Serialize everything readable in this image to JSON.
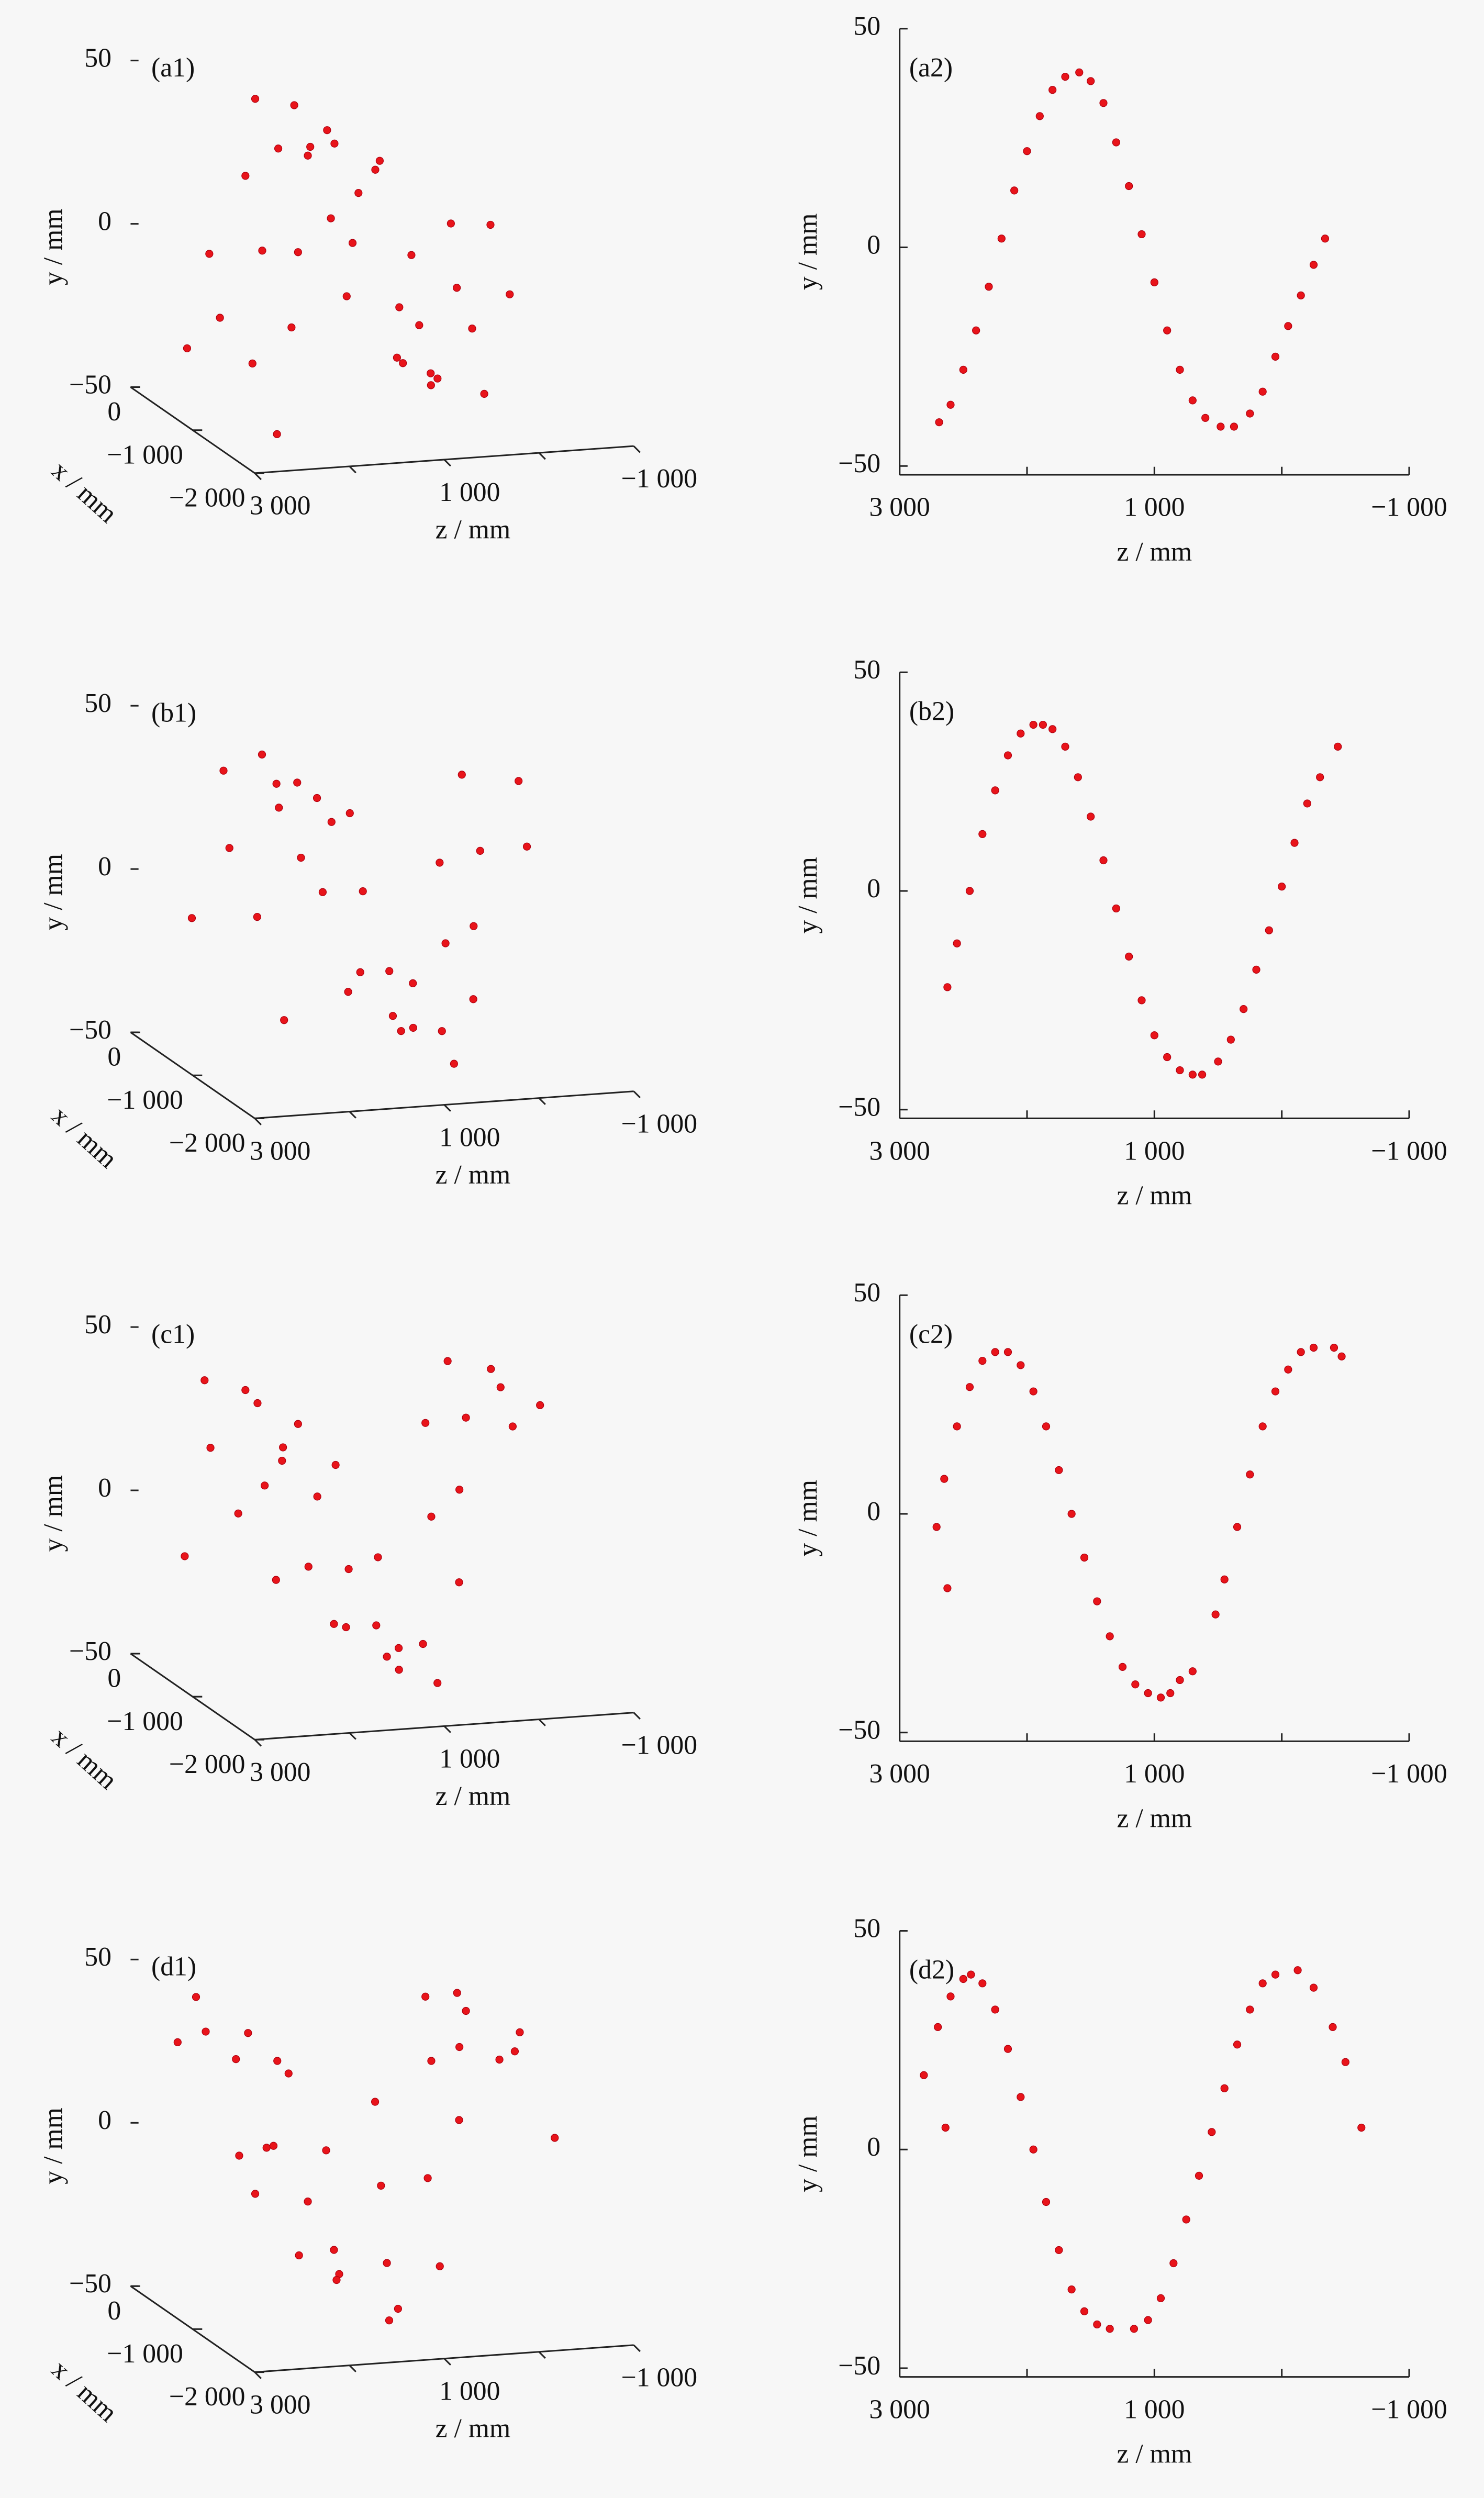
{
  "chart_data": [
    {
      "type": "scatter3d",
      "label": "(a1)",
      "zlabel": "z / mm",
      "xlabel": "x / mm",
      "ylabel": "y / mm",
      "color": "#e8141a",
      "zlim": [
        3000,
        -1000
      ],
      "xlim": [
        -2000,
        0
      ],
      "ylim": [
        -50,
        50
      ],
      "zticks": [
        {
          "value": 3000,
          "label": "3 000"
        },
        {
          "value": 1000,
          "label": "1 000"
        },
        {
          "value": -1000,
          "label": "−1 000"
        }
      ],
      "zminor": [
        2000,
        0
      ],
      "xticks": [
        0,
        {
          "value": -1000,
          "label": "−1 000"
        },
        {
          "value": -2000,
          "label": "−2 000"
        }
      ],
      "yticks": [
        50,
        0,
        {
          "value": -50,
          "label": "−50"
        }
      ],
      "z": [
        2700,
        2600,
        2500,
        2450,
        2350,
        2300,
        2200,
        2150,
        2050,
        2000,
        1900,
        1850,
        1750,
        1700,
        1600,
        1550,
        1450,
        1400,
        1300,
        1250,
        1150,
        1050,
        950,
        850,
        750,
        650,
        550,
        450,
        350,
        250,
        150,
        50,
        -50,
        -150,
        -250,
        -340
      ],
      "y": [
        -40,
        -35,
        -28,
        -22,
        -12,
        -8,
        2,
        8,
        18,
        22,
        30,
        33,
        37,
        39,
        40,
        40,
        36,
        33,
        24,
        19,
        9,
        -2,
        -14,
        -24,
        -32,
        -37,
        -40,
        -41,
        -41,
        -38,
        -33,
        -25,
        -18,
        -11,
        -4,
        2
      ],
      "x": [
        -1900,
        -300,
        -1200,
        -600,
        -1600,
        -200,
        -900,
        -1400,
        -400,
        -1700,
        -700,
        -1100,
        -100,
        -1300,
        -500,
        -1800,
        -800,
        -1500,
        -300,
        -1000,
        -1700,
        -600,
        -1200,
        -200,
        -1400,
        -800,
        -1100,
        -400,
        -900,
        -1500,
        -300,
        -1000,
        -600,
        -1300,
        -200,
        -700
      ]
    },
    {
      "type": "scatter",
      "label": "(a2)",
      "xlabel": "z / mm",
      "ylabel": "y / mm",
      "color": "#e8141a",
      "xlim": [
        3000,
        -1000
      ],
      "ylim": [
        -52,
        50
      ],
      "xticks": [
        {
          "value": 3000,
          "label": "3 000"
        },
        {
          "value": 1000,
          "label": "1 000"
        },
        {
          "value": -1000,
          "label": "−1 000"
        }
      ],
      "xminor": [
        2000,
        0
      ],
      "yticks": [
        50,
        0,
        {
          "value": -50,
          "label": "−50"
        }
      ],
      "x": [
        2690,
        2600,
        2500,
        2400,
        2300,
        2200,
        2100,
        2000,
        1900,
        1800,
        1700,
        1590,
        1500,
        1400,
        1300,
        1200,
        1100,
        1000,
        900,
        800,
        700,
        600,
        480,
        375,
        250,
        150,
        50,
        -50,
        -150,
        -250,
        -340
      ],
      "y": [
        -40,
        -36,
        -28,
        -19,
        -9,
        2,
        13,
        22,
        30,
        36,
        39,
        40,
        38,
        33,
        24,
        14,
        3,
        -8,
        -19,
        -28,
        -35,
        -39,
        -41,
        -41,
        -38,
        -33,
        -25,
        -18,
        -11,
        -4,
        2
      ]
    },
    {
      "type": "scatter3d",
      "label": "(b1)",
      "zlabel": "z / mm",
      "xlabel": "x / mm",
      "ylabel": "y / mm",
      "color": "#e8141a",
      "zlim": [
        3000,
        -1000
      ],
      "xlim": [
        -2000,
        0
      ],
      "ylim": [
        -50,
        50
      ],
      "zticks": [
        {
          "value": 3000,
          "label": "3 000"
        },
        {
          "value": 1000,
          "label": "1 000"
        },
        {
          "value": -1000,
          "label": "−1 000"
        }
      ],
      "zminor": [
        2000,
        0
      ],
      "xticks": [
        0,
        {
          "value": -1000,
          "label": "−1 000"
        },
        {
          "value": -2000,
          "label": "−2 000"
        }
      ],
      "yticks": [
        50,
        0,
        {
          "value": -50,
          "label": "−50"
        }
      ],
      "z": [
        2625,
        2550,
        2450,
        2350,
        2250,
        2150,
        2050,
        1950,
        1875,
        1800,
        1700,
        1600,
        1500,
        1400,
        1300,
        1200,
        1100,
        1000,
        900,
        800,
        700,
        625,
        500,
        400,
        300,
        200,
        100,
        0,
        -100,
        -200,
        -300,
        -440
      ],
      "y": [
        -22,
        -12,
        0,
        13,
        23,
        31,
        36,
        38,
        38,
        37,
        33,
        26,
        17,
        7,
        -4,
        -15,
        -25,
        -33,
        -38,
        -41,
        -42,
        -42,
        -39,
        -34,
        -27,
        -18,
        -9,
        1,
        11,
        20,
        26,
        33
      ],
      "x": [
        -1900,
        -300,
        -1200,
        -600,
        -1600,
        -200,
        -900,
        -1400,
        -400,
        -1700,
        -700,
        -1100,
        -100,
        -1300,
        -500,
        -1800,
        -800,
        -1500,
        -300,
        -1000,
        -1700,
        -600,
        -1200,
        -200,
        -1400,
        -800,
        -1100,
        -400,
        -900,
        -1500,
        -300,
        -1000
      ]
    },
    {
      "type": "scatter",
      "label": "(b2)",
      "xlabel": "z / mm",
      "ylabel": "y / mm",
      "color": "#e8141a",
      "xlim": [
        3000,
        -1000
      ],
      "ylim": [
        -52,
        50
      ],
      "xticks": [
        {
          "value": 3000,
          "label": "3 000"
        },
        {
          "value": 1000,
          "label": "1 000"
        },
        {
          "value": -1000,
          "label": "−1 000"
        }
      ],
      "xminor": [
        2000,
        0
      ],
      "yticks": [
        50,
        0,
        {
          "value": -50,
          "label": "−50"
        }
      ],
      "x": [
        2625,
        2550,
        2450,
        2350,
        2250,
        2150,
        2050,
        1950,
        1875,
        1800,
        1700,
        1600,
        1500,
        1400,
        1300,
        1200,
        1100,
        1000,
        900,
        800,
        700,
        625,
        500,
        400,
        300,
        200,
        100,
        0,
        -100,
        -200,
        -300,
        -440
      ],
      "y": [
        -22,
        -12,
        0,
        13,
        23,
        31,
        36,
        38,
        38,
        37,
        33,
        26,
        17,
        7,
        -4,
        -15,
        -25,
        -33,
        -38,
        -41,
        -42,
        -42,
        -39,
        -34,
        -27,
        -18,
        -9,
        1,
        11,
        20,
        26,
        33
      ]
    },
    {
      "type": "scatter3d",
      "label": "(c1)",
      "zlabel": "z / mm",
      "xlabel": "x / mm",
      "ylabel": "y / mm",
      "color": "#e8141a",
      "zlim": [
        3000,
        -1000
      ],
      "xlim": [
        -2000,
        0
      ],
      "ylim": [
        -50,
        50
      ],
      "zticks": [
        {
          "value": 3000,
          "label": "3 000"
        },
        {
          "value": 1000,
          "label": "1 000"
        },
        {
          "value": -1000,
          "label": "−1 000"
        }
      ],
      "zminor": [
        2000,
        0
      ],
      "xticks": [
        0,
        {
          "value": -1000,
          "label": "−1 000"
        },
        {
          "value": -2000,
          "label": "−2 000"
        }
      ],
      "yticks": [
        50,
        0,
        {
          "value": -50,
          "label": "−50"
        }
      ],
      "z": [
        2710,
        2625,
        2650,
        2550,
        2450,
        2350,
        2250,
        2150,
        2050,
        1950,
        1850,
        1750,
        1650,
        1550,
        1450,
        1350,
        1250,
        1150,
        1050,
        950,
        875,
        800,
        700,
        520,
        450,
        350,
        250,
        150,
        50,
        -50,
        -150,
        -250,
        -410,
        -470
      ],
      "y": [
        -3,
        -17,
        8,
        20,
        29,
        35,
        37,
        37,
        34,
        28,
        20,
        10,
        0,
        -10,
        -20,
        -28,
        -35,
        -39,
        -41,
        -42,
        -41,
        -38,
        -36,
        -23,
        -15,
        -3,
        9,
        20,
        28,
        33,
        37,
        38,
        38,
        36
      ],
      "x": [
        -1900,
        -300,
        -1200,
        -600,
        -1600,
        -200,
        -900,
        -1400,
        -400,
        -1700,
        -700,
        -1100,
        -100,
        -1300,
        -500,
        -1800,
        -800,
        -1500,
        -300,
        -1000,
        -1700,
        -600,
        -1200,
        -200,
        -1400,
        -800,
        -1100,
        -400,
        -900,
        -1500,
        -300,
        -1000,
        -600,
        -1300
      ]
    },
    {
      "type": "scatter",
      "label": "(c2)",
      "xlabel": "z / mm",
      "ylabel": "y / mm",
      "color": "#e8141a",
      "xlim": [
        3000,
        -1000
      ],
      "ylim": [
        -52,
        50
      ],
      "xticks": [
        {
          "value": 3000,
          "label": "3 000"
        },
        {
          "value": 1000,
          "label": "1 000"
        },
        {
          "value": -1000,
          "label": "−1 000"
        }
      ],
      "xminor": [
        2000,
        0
      ],
      "yticks": [
        50,
        0,
        {
          "value": -50,
          "label": "−50"
        }
      ],
      "x": [
        2710,
        2625,
        2650,
        2550,
        2450,
        2350,
        2250,
        2150,
        2050,
        1950,
        1850,
        1750,
        1650,
        1550,
        1450,
        1350,
        1250,
        1150,
        1050,
        950,
        875,
        800,
        700,
        520,
        450,
        350,
        250,
        150,
        50,
        -50,
        -150,
        -250,
        -410,
        -470
      ],
      "y": [
        -3,
        -17,
        8,
        20,
        29,
        35,
        37,
        37,
        34,
        28,
        20,
        10,
        0,
        -10,
        -20,
        -28,
        -35,
        -39,
        -41,
        -42,
        -41,
        -38,
        -36,
        -23,
        -15,
        -3,
        9,
        20,
        28,
        33,
        37,
        38,
        38,
        36
      ]
    },
    {
      "type": "scatter3d",
      "label": "(d1)",
      "zlabel": "z / mm",
      "xlabel": "x / mm",
      "ylabel": "y / mm",
      "color": "#e8141a",
      "zlim": [
        3000,
        -1000
      ],
      "xlim": [
        -2000,
        0
      ],
      "ylim": [
        -50,
        50
      ],
      "zticks": [
        {
          "value": 3000,
          "label": "3 000"
        },
        {
          "value": 1000,
          "label": "1 000"
        },
        {
          "value": -1000,
          "label": "−1 000"
        }
      ],
      "zminor": [
        2000,
        0
      ],
      "xticks": [
        0,
        {
          "value": -1000,
          "label": "−1 000"
        },
        {
          "value": -2000,
          "label": "−2 000"
        }
      ],
      "yticks": [
        50,
        0,
        {
          "value": -50,
          "label": "−50"
        }
      ],
      "z": [
        2810,
        2700,
        2640,
        2600,
        2500,
        2440,
        2350,
        2250,
        2150,
        2050,
        1950,
        1850,
        1750,
        1650,
        1550,
        1450,
        1350,
        1160,
        1050,
        950,
        850,
        750,
        650,
        550,
        450,
        350,
        250,
        150,
        50,
        -125,
        -250,
        -400,
        -500,
        -625
      ],
      "y": [
        17,
        28,
        5,
        35,
        39,
        40,
        38,
        32,
        23,
        12,
        0,
        -12,
        -23,
        -32,
        -37,
        -40,
        -41,
        -41,
        -39,
        -34,
        -26,
        -16,
        -6,
        4,
        14,
        24,
        32,
        38,
        40,
        41,
        37,
        28,
        20,
        5
      ],
      "x": [
        -1900,
        -300,
        -1200,
        -600,
        -1600,
        -200,
        -900,
        -1400,
        -400,
        -1700,
        -700,
        -1100,
        -100,
        -1300,
        -500,
        -1800,
        -800,
        -1500,
        -300,
        -1000,
        -1700,
        -600,
        -1200,
        -200,
        -1400,
        -800,
        -1100,
        -400,
        -900,
        -1500,
        -300,
        -1000,
        -600,
        -1300
      ]
    },
    {
      "type": "scatter",
      "label": "(d2)",
      "xlabel": "z / mm",
      "ylabel": "y / mm",
      "color": "#e8141a",
      "xlim": [
        3000,
        -1000
      ],
      "ylim": [
        -52,
        50
      ],
      "xticks": [
        {
          "value": 3000,
          "label": "3 000"
        },
        {
          "value": 1000,
          "label": "1 000"
        },
        {
          "value": -1000,
          "label": "−1 000"
        }
      ],
      "xminor": [
        2000,
        0
      ],
      "yticks": [
        50,
        0,
        {
          "value": -50,
          "label": "−50"
        }
      ],
      "x": [
        2810,
        2700,
        2640,
        2600,
        2500,
        2440,
        2350,
        2250,
        2150,
        2050,
        1950,
        1850,
        1750,
        1650,
        1550,
        1450,
        1350,
        1160,
        1050,
        950,
        850,
        750,
        650,
        550,
        450,
        350,
        250,
        150,
        50,
        -125,
        -250,
        -400,
        -500,
        -625
      ],
      "y": [
        17,
        28,
        5,
        35,
        39,
        40,
        38,
        32,
        23,
        12,
        0,
        -12,
        -23,
        -32,
        -37,
        -40,
        -41,
        -41,
        -39,
        -34,
        -26,
        -16,
        -6,
        4,
        14,
        24,
        32,
        38,
        40,
        41,
        37,
        28,
        20,
        5
      ]
    }
  ]
}
